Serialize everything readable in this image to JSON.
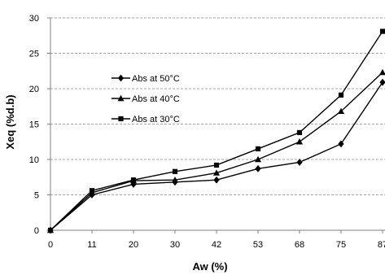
{
  "chart_data": {
    "type": "line",
    "xlabel": "Aw (%)",
    "ylabel": "Xeq (%d.b)",
    "categories": [
      "0",
      "11",
      "20",
      "30",
      "42",
      "53",
      "68",
      "75",
      "87"
    ],
    "yticks": [
      "0",
      "5",
      "10",
      "15",
      "20",
      "25",
      "30"
    ],
    "ylim": [
      0,
      30
    ],
    "grid": "horizontal dashed",
    "legend_position": "upper-left inside plot",
    "series": [
      {
        "name": "Abs at 50°C",
        "marker": "diamond",
        "values": [
          0,
          5.0,
          6.5,
          6.8,
          7.1,
          8.7,
          9.6,
          12.2,
          20.9
        ]
      },
      {
        "name": "Abs at 40°C",
        "marker": "triangle",
        "values": [
          0,
          5.3,
          7.0,
          7.1,
          8.1,
          10.0,
          12.5,
          16.8,
          22.3
        ]
      },
      {
        "name": "Abs at 30°C",
        "marker": "square",
        "values": [
          0,
          5.6,
          7.1,
          8.3,
          9.2,
          11.5,
          13.8,
          19.1,
          28.1
        ]
      }
    ],
    "colors": {
      "line": "#000000",
      "grid": "#a6a6a6",
      "axis": "#808080"
    }
  }
}
